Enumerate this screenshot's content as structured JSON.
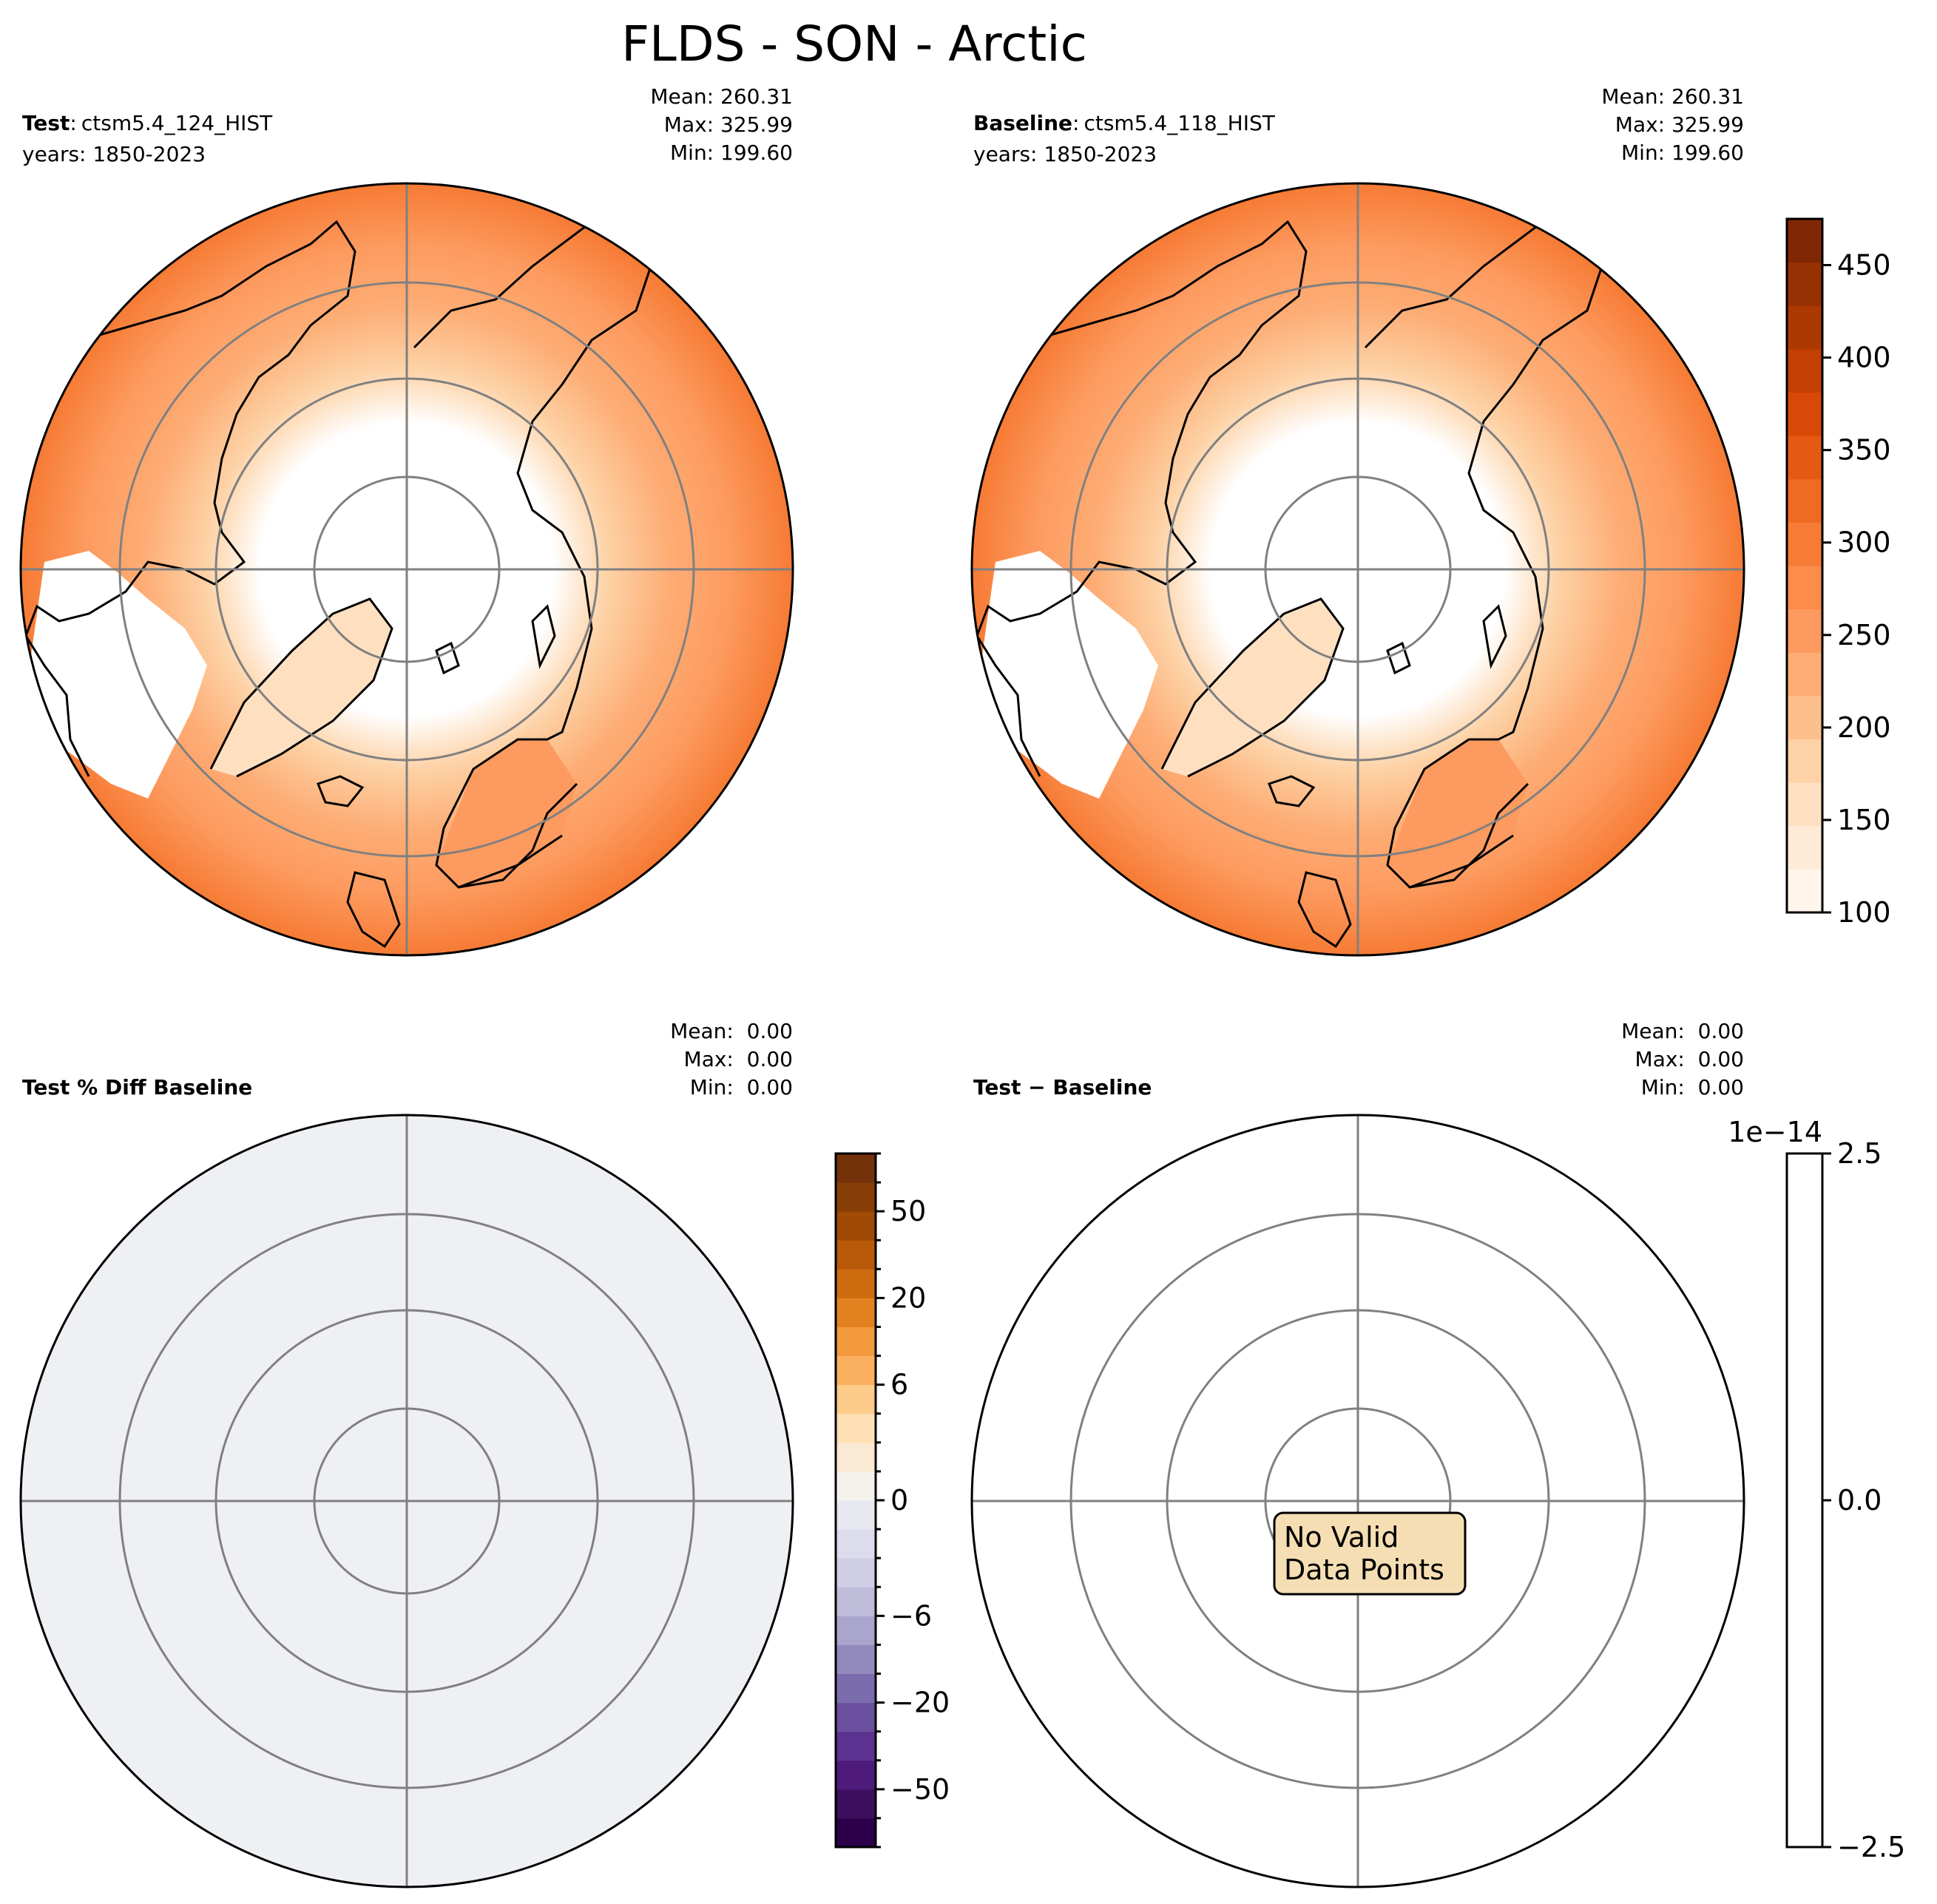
{
  "figure": {
    "title": "FLDS - SON - Arctic"
  },
  "chart_data": [
    {
      "type": "heatmap",
      "projection": "north-polar-stereographic",
      "label_bold": "Test",
      "label_sep": ":",
      "label_case": "ctsm5.4_124_HIST",
      "years": "years: 1850-2023",
      "stats": [
        "Mean: 260.31",
        "Max: 325.99",
        "Min: 199.60"
      ],
      "fill": "orange-field",
      "colorbar": "abs"
    },
    {
      "type": "heatmap",
      "projection": "north-polar-stereographic",
      "label_bold": "Baseline",
      "label_sep": ":",
      "label_case": "ctsm5.4_118_HIST",
      "years": "years: 1850-2023",
      "stats": [
        "Mean: 260.31",
        "Max: 325.99",
        "Min: 199.60"
      ],
      "fill": "orange-field",
      "colorbar": "abs"
    },
    {
      "type": "heatmap",
      "projection": "north-polar-stereographic",
      "label_bold": "Test % Diff Baseline",
      "label_sep": "",
      "label_case": "",
      "years": "",
      "stats": [
        "Mean:  0.00",
        "Max:  0.00",
        "Min:  0.00"
      ],
      "fill": "grey-uniform",
      "colorbar": "pct"
    },
    {
      "type": "heatmap",
      "projection": "north-polar-stereographic",
      "label_bold": "Test − Baseline",
      "label_sep": "",
      "label_case": "",
      "years": "",
      "stats": [
        "Mean:  0.00",
        "Max:  0.00",
        "Min:  0.00"
      ],
      "fill": "empty",
      "annotation": [
        "No Valid",
        "Data Points"
      ],
      "colorbar": "diff"
    }
  ],
  "colorbars": {
    "abs": {
      "vmin": 100,
      "vmax": 475,
      "ticks": [
        "100",
        "150",
        "200",
        "250",
        "300",
        "350",
        "400",
        "450"
      ],
      "tick_values": [
        100,
        150,
        200,
        250,
        300,
        350,
        400,
        450
      ],
      "colors": [
        "#fff5eb",
        "#feead6",
        "#fee0c1",
        "#fdd2a6",
        "#fdc08c",
        "#fdad75",
        "#fd9a5f",
        "#fd8b4a",
        "#f67b34",
        "#ef6b21",
        "#e45a13",
        "#d84907",
        "#c33f03",
        "#ad3902",
        "#973003",
        "#7f2704"
      ]
    },
    "pct": {
      "levels": [
        -100,
        -75,
        -50,
        -40,
        -30,
        -20,
        -15,
        -10,
        -6,
        -4,
        -2,
        -1,
        0,
        1,
        2,
        4,
        6,
        10,
        15,
        20,
        30,
        40,
        50,
        75,
        100
      ],
      "ticks": [
        "−50",
        "−20",
        "−6",
        "0",
        "6",
        "20",
        "50"
      ],
      "tick_levels": [
        -50,
        -20,
        -6,
        0,
        6,
        20,
        50
      ],
      "colors": [
        "#2d004b",
        "#3d0f5f",
        "#4f1b7a",
        "#5c3392",
        "#6b50a0",
        "#7b6cad",
        "#9289bd",
        "#aaa5cc",
        "#bfbcda",
        "#d0cee5",
        "#dcdced",
        "#e8e8f1",
        "#f5f2ec",
        "#fbead3",
        "#fde0b5",
        "#fdcb8a",
        "#fbb060",
        "#f29a3d",
        "#e38121",
        "#d06c10",
        "#b85a0a",
        "#a04a07",
        "#883e07",
        "#73320a"
      ]
    },
    "diff": {
      "ticks": [
        "−2.5",
        "0.0",
        "2.5"
      ],
      "tick_values": [
        -2.5,
        0.0,
        2.5
      ],
      "offset": "1e−14"
    }
  }
}
